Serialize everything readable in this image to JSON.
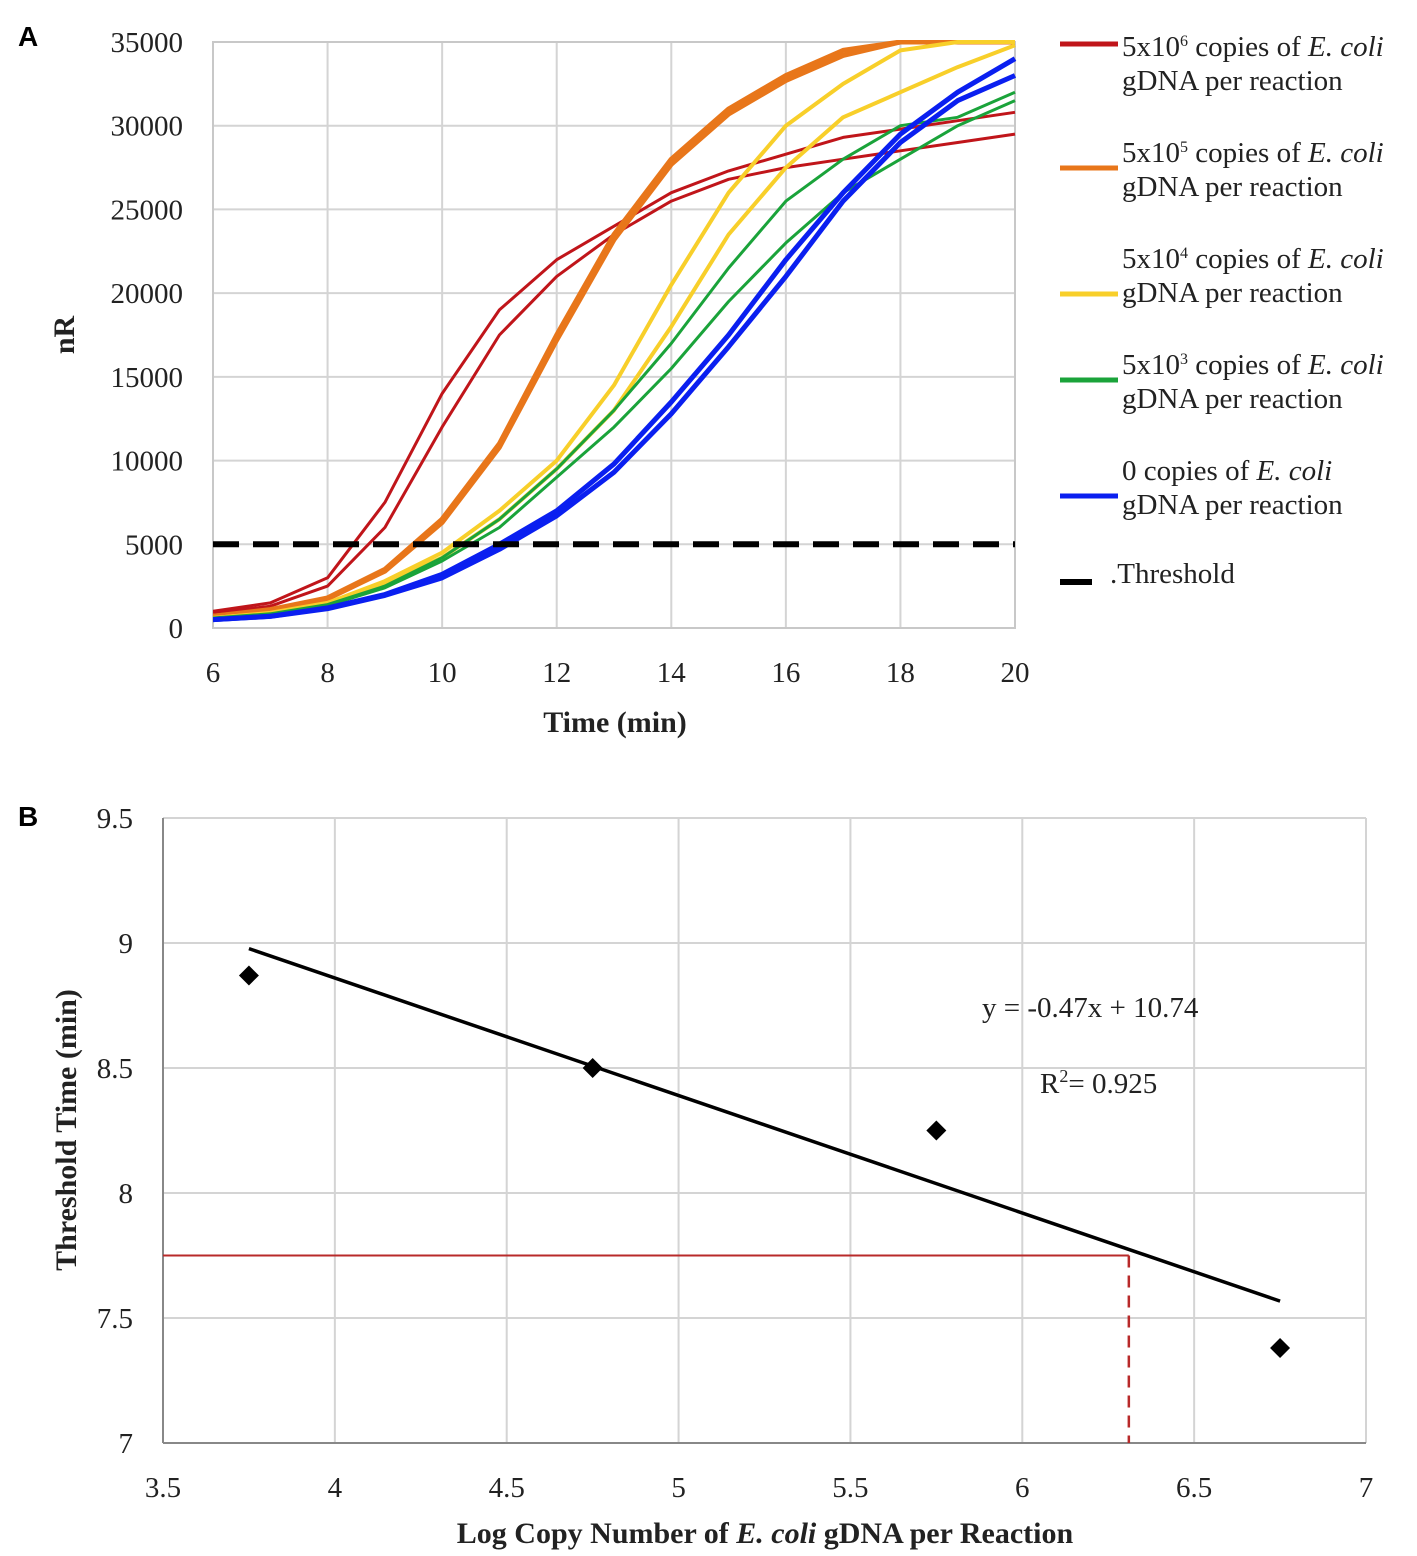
{
  "chart_data": [
    {
      "panel": "A",
      "type": "line",
      "xlabel": "Time (min)",
      "ylabel": "nR",
      "xlim": [
        6,
        20
      ],
      "ylim": [
        0,
        35000
      ],
      "xticks": [
        "6",
        "8",
        "10",
        "12",
        "14",
        "16",
        "18",
        "20"
      ],
      "yticks": [
        "0",
        "5000",
        "10000",
        "15000",
        "20000",
        "25000",
        "30000",
        "35000"
      ],
      "grid": true,
      "legend_position": "right",
      "x": [
        6,
        7,
        8,
        9,
        10,
        11,
        12,
        13,
        14,
        15,
        16,
        17,
        18,
        19,
        20
      ],
      "series": [
        {
          "name_parts": [
            "5x10",
            "6",
            " copies of ",
            "E. coli",
            "gDNA per reaction"
          ],
          "color": "#c0151a",
          "width": 3,
          "replicates": [
            [
              1000,
              1500,
              3000,
              7500,
              14000,
              19000,
              22000,
              24000,
              26000,
              27300,
              28300,
              29300,
              29800,
              30300,
              30800
            ],
            [
              900,
              1300,
              2500,
              6000,
              12000,
              17500,
              21000,
              23500,
              25500,
              26800,
              27500,
              28000,
              28500,
              29000,
              29500
            ]
          ]
        },
        {
          "name_parts": [
            "5x10",
            "5",
            " copies of ",
            "E. coli",
            "gDNA  per reaction"
          ],
          "color": "#e8761a",
          "width": 5,
          "replicates": [
            [
              700,
              1100,
              1800,
              3500,
              6500,
              11000,
              17500,
              23500,
              28000,
              31000,
              33000,
              34500,
              35000,
              35000,
              35000
            ],
            [
              700,
              1050,
              1750,
              3400,
              6300,
              10800,
              17200,
              23200,
              27700,
              30700,
              32700,
              34200,
              35000,
              35000,
              35000
            ]
          ]
        },
        {
          "name_parts": [
            "5x10",
            "4",
            " copies of ",
            "E. coli",
            "gDNA per reaction"
          ],
          "color": "#f8cf2a",
          "width": 4,
          "replicates": [
            [
              600,
              900,
              1500,
              2800,
              4500,
              7000,
              10000,
              14500,
              20500,
              26000,
              30000,
              32500,
              34500,
              35000,
              35000
            ],
            [
              600,
              880,
              1450,
              2700,
              4200,
              6500,
              9500,
              13000,
              18000,
              23500,
              27500,
              30500,
              32000,
              33500,
              34800
            ]
          ]
        },
        {
          "name_parts": [
            "5x10",
            "3",
            " copies of ",
            "E. coli",
            "gDNA per reaction"
          ],
          "color": "#1aa33a",
          "width": 3,
          "replicates": [
            [
              600,
              850,
              1400,
              2500,
              4200,
              6500,
              9500,
              13000,
              17000,
              21500,
              25500,
              28000,
              30000,
              30500,
              32000
            ],
            [
              580,
              820,
              1350,
              2400,
              4000,
              6000,
              9000,
              12000,
              15500,
              19500,
              23000,
              26000,
              28000,
              30000,
              31500
            ]
          ]
        },
        {
          "name_parts": [
            "0 copies of ",
            "",
            "",
            "E. coli",
            "gDNA per reaction"
          ],
          "color": "#0a1ff0",
          "width": 5,
          "replicates": [
            [
              500,
              700,
              1200,
              2000,
              3200,
              5000,
              7000,
              9800,
              13500,
              17500,
              22000,
              26000,
              29500,
              32000,
              34000
            ],
            [
              500,
              690,
              1150,
              1950,
              3000,
              4700,
              6700,
              9300,
              12800,
              16800,
              21000,
              25500,
              29000,
              31500,
              33000
            ]
          ]
        }
      ],
      "threshold": {
        "label": ".Threshold",
        "value": 5000,
        "color": "#000000"
      }
    },
    {
      "panel": "B",
      "type": "scatter",
      "xlabel_parts": [
        "Log Copy Number of ",
        "E. coli",
        " gDNA per Reaction"
      ],
      "ylabel": "Threshold Time (min)",
      "xlim": [
        3.5,
        7
      ],
      "ylim": [
        7,
        9.5
      ],
      "xticks": [
        "3.5",
        "4",
        "4.5",
        "5",
        "5.5",
        "6",
        "6.5",
        "7"
      ],
      "yticks": [
        "7",
        "7.5",
        "8",
        "8.5",
        "9",
        "9.5"
      ],
      "grid": true,
      "points": [
        {
          "x": 3.75,
          "y": 8.87
        },
        {
          "x": 4.75,
          "y": 8.5
        },
        {
          "x": 5.75,
          "y": 8.25
        },
        {
          "x": 6.75,
          "y": 7.38
        }
      ],
      "trendline": {
        "slope": -0.47,
        "intercept": 10.74,
        "x_range": [
          3.75,
          6.75
        ]
      },
      "equation": "y = -0.47x  + 10.74",
      "r2_prefix": "R",
      "r2_sup": "2",
      "r2_value": "= 0.925",
      "reference": {
        "y": 7.75,
        "x": 6.31,
        "color": "#b82a2a"
      }
    }
  ],
  "panel_labels": [
    "A",
    "B"
  ]
}
